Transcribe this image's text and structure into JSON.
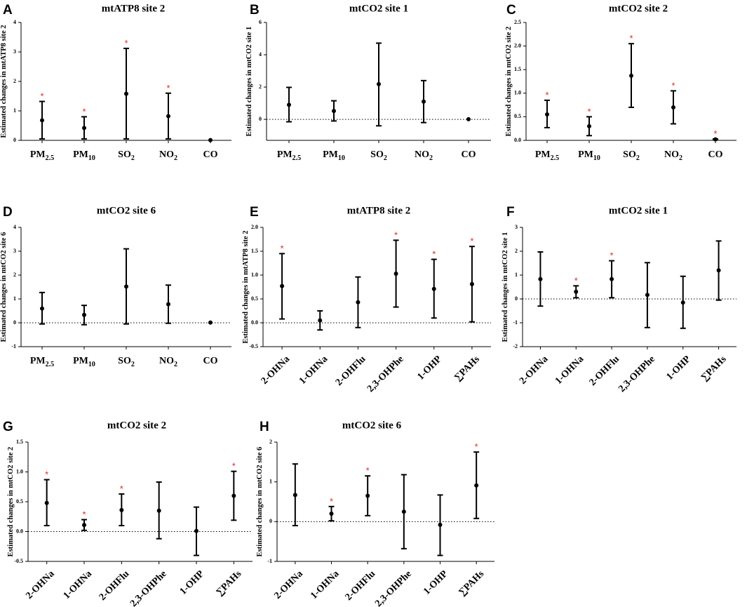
{
  "colors": {
    "marker": "#000000",
    "significance": "#e32b2b",
    "zero_line": "#000000"
  },
  "chart_data": [
    {
      "letter": "A",
      "type": "scatter",
      "title": "mtATP8 site 2",
      "ylabel": "Estimated changes in mtATP8 site 2",
      "xlabel": "",
      "ylim": [
        0,
        4
      ],
      "yticks": [
        "0",
        "1",
        "2",
        "3",
        "4"
      ],
      "categories": [
        {
          "label": "PM2.5",
          "base": "PM",
          "sub": "2.5",
          "value": 0.68,
          "lower": 0.05,
          "upper": 1.32,
          "sig": true
        },
        {
          "label": "PM10",
          "base": "PM",
          "sub": "10",
          "value": 0.42,
          "lower": 0.05,
          "upper": 0.8,
          "sig": true
        },
        {
          "label": "SO2",
          "base": "SO",
          "sub": "2",
          "value": 1.58,
          "lower": 0.05,
          "upper": 3.12,
          "sig": true
        },
        {
          "label": "NO2",
          "base": "NO",
          "sub": "2",
          "value": 0.82,
          "lower": 0.05,
          "upper": 1.6,
          "sig": true
        },
        {
          "label": "CO",
          "base": "CO",
          "sub": "",
          "value": 0.01,
          "lower": 0.01,
          "upper": 0.01,
          "sig": false
        }
      ]
    },
    {
      "letter": "B",
      "type": "scatter",
      "title": "mtCO2 site 1",
      "ylabel": "Estimated changes in mtCO2 site 1",
      "xlabel": "",
      "ylim": [
        -1.3,
        6
      ],
      "yticks": [
        "0",
        "2",
        "4",
        "6"
      ],
      "categories": [
        {
          "label": "PM2.5",
          "base": "PM",
          "sub": "2.5",
          "value": 0.9,
          "lower": -0.15,
          "upper": 1.98,
          "sig": false
        },
        {
          "label": "PM10",
          "base": "PM",
          "sub": "10",
          "value": 0.52,
          "lower": -0.1,
          "upper": 1.15,
          "sig": false
        },
        {
          "label": "SO2",
          "base": "SO",
          "sub": "2",
          "value": 2.18,
          "lower": -0.4,
          "upper": 4.72,
          "sig": false
        },
        {
          "label": "NO2",
          "base": "NO",
          "sub": "2",
          "value": 1.1,
          "lower": -0.2,
          "upper": 2.4,
          "sig": false
        },
        {
          "label": "CO",
          "base": "CO",
          "sub": "",
          "value": 0.01,
          "lower": 0.01,
          "upper": 0.01,
          "sig": false
        }
      ]
    },
    {
      "letter": "C",
      "type": "scatter",
      "title": "mtCO2 site 2",
      "ylabel": "Estimated changes in mtCO2 site 2",
      "xlabel": "",
      "ylim": [
        0,
        2.5
      ],
      "yticks": [
        "0.0",
        "0.5",
        "1.0",
        "1.5",
        "2.0",
        "2.5"
      ],
      "categories": [
        {
          "label": "PM2.5",
          "base": "PM",
          "sub": "2.5",
          "value": 0.55,
          "lower": 0.27,
          "upper": 0.85,
          "sig": true
        },
        {
          "label": "PM10",
          "base": "PM",
          "sub": "10",
          "value": 0.3,
          "lower": 0.1,
          "upper": 0.5,
          "sig": true
        },
        {
          "label": "SO2",
          "base": "SO",
          "sub": "2",
          "value": 1.37,
          "lower": 0.7,
          "upper": 2.05,
          "sig": true
        },
        {
          "label": "NO2",
          "base": "NO",
          "sub": "2",
          "value": 0.7,
          "lower": 0.35,
          "upper": 1.05,
          "sig": true
        },
        {
          "label": "CO",
          "base": "CO",
          "sub": "",
          "value": 0.02,
          "lower": 0.01,
          "upper": 0.03,
          "sig": true
        }
      ]
    },
    {
      "letter": "D",
      "type": "scatter",
      "title": "mtCO2 site 6",
      "ylabel": "Estimated changes in mtCO2 site 6",
      "xlabel": "",
      "ylim": [
        -1,
        4
      ],
      "yticks": [
        "-1",
        "0",
        "1",
        "2",
        "3",
        "4"
      ],
      "categories": [
        {
          "label": "PM2.5",
          "base": "PM",
          "sub": "2.5",
          "value": 0.6,
          "lower": -0.05,
          "upper": 1.27,
          "sig": false
        },
        {
          "label": "PM10",
          "base": "PM",
          "sub": "10",
          "value": 0.33,
          "lower": -0.08,
          "upper": 0.73,
          "sig": false
        },
        {
          "label": "SO2",
          "base": "SO",
          "sub": "2",
          "value": 1.52,
          "lower": -0.05,
          "upper": 3.1,
          "sig": false
        },
        {
          "label": "NO2",
          "base": "NO",
          "sub": "2",
          "value": 0.78,
          "lower": -0.02,
          "upper": 1.58,
          "sig": false
        },
        {
          "label": "CO",
          "base": "CO",
          "sub": "",
          "value": 0.01,
          "lower": 0.01,
          "upper": 0.01,
          "sig": false
        }
      ]
    },
    {
      "letter": "E",
      "type": "scatter",
      "title": "mtATP8 site 2",
      "ylabel": "Estimated changes in mtATP8 site 2",
      "xlabel": "",
      "ylim": [
        -0.5,
        2.0
      ],
      "yticks": [
        "-0.5",
        "0.0",
        "0.5",
        "1.0",
        "1.5",
        "2.0"
      ],
      "categories": [
        {
          "label": "2-OHNa",
          "base": "2-OHNa",
          "sub": "",
          "value": 0.77,
          "lower": 0.08,
          "upper": 1.45,
          "sig": true
        },
        {
          "label": "1-OHNa",
          "base": "1-OHNa",
          "sub": "",
          "value": 0.05,
          "lower": -0.15,
          "upper": 0.25,
          "sig": false
        },
        {
          "label": "2-OHFlu",
          "base": "2-OHFlu",
          "sub": "",
          "value": 0.43,
          "lower": -0.1,
          "upper": 0.96,
          "sig": false
        },
        {
          "label": "2,3-OHPhe",
          "base": "2,3-OHPhe",
          "sub": "",
          "value": 1.03,
          "lower": 0.33,
          "upper": 1.73,
          "sig": true
        },
        {
          "label": "1-OHP",
          "base": "1-OHP",
          "sub": "",
          "value": 0.71,
          "lower": 0.1,
          "upper": 1.33,
          "sig": true
        },
        {
          "label": "∑PAHs",
          "base": "∑PAHs",
          "sub": "",
          "value": 0.81,
          "lower": 0.02,
          "upper": 1.6,
          "sig": true
        }
      ]
    },
    {
      "letter": "F",
      "type": "scatter",
      "title": "mtCO2 site 1",
      "ylabel": "Estimated changes in mtCO2 site 1",
      "xlabel": "",
      "ylim": [
        -2,
        3
      ],
      "yticks": [
        "-2",
        "-1",
        "0",
        "1",
        "2",
        "3"
      ],
      "categories": [
        {
          "label": "2-OHNa",
          "base": "2-OHNa",
          "sub": "",
          "value": 0.83,
          "lower": -0.3,
          "upper": 1.97,
          "sig": false
        },
        {
          "label": "1-OHNa",
          "base": "1-OHNa",
          "sub": "",
          "value": 0.3,
          "lower": 0.05,
          "upper": 0.55,
          "sig": true
        },
        {
          "label": "2-OHFlu",
          "base": "2-OHFlu",
          "sub": "",
          "value": 0.83,
          "lower": 0.05,
          "upper": 1.6,
          "sig": true
        },
        {
          "label": "2,3-OHPhe",
          "base": "2,3-OHPhe",
          "sub": "",
          "value": 0.17,
          "lower": -1.2,
          "upper": 1.52,
          "sig": false
        },
        {
          "label": "1-OHP",
          "base": "1-OHP",
          "sub": "",
          "value": -0.15,
          "lower": -1.23,
          "upper": 0.95,
          "sig": false
        },
        {
          "label": "∑PAHs",
          "base": "∑PAHs",
          "sub": "",
          "value": 1.2,
          "lower": -0.05,
          "upper": 2.43,
          "sig": false
        }
      ]
    },
    {
      "letter": "G",
      "type": "scatter",
      "title": "mtCO2 site 2",
      "ylabel": "Estimated changes in mtCO2 site 2",
      "xlabel": "",
      "ylim": [
        -0.5,
        1.5
      ],
      "yticks": [
        "-0.5",
        "0.0",
        "0.5",
        "1.0",
        "1.5"
      ],
      "categories": [
        {
          "label": "2-OHNa",
          "base": "2-OHNa",
          "sub": "",
          "value": 0.48,
          "lower": 0.1,
          "upper": 0.87,
          "sig": true
        },
        {
          "label": "1-OHNa",
          "base": "1-OHNa",
          "sub": "",
          "value": 0.11,
          "lower": 0.02,
          "upper": 0.2,
          "sig": true
        },
        {
          "label": "2-OHFlu",
          "base": "2-OHFlu",
          "sub": "",
          "value": 0.36,
          "lower": 0.1,
          "upper": 0.63,
          "sig": true
        },
        {
          "label": "2,3-OHPhe",
          "base": "2,3-OHPhe",
          "sub": "",
          "value": 0.35,
          "lower": -0.12,
          "upper": 0.83,
          "sig": false
        },
        {
          "label": "1-OHP",
          "base": "1-OHP",
          "sub": "",
          "value": 0.01,
          "lower": -0.4,
          "upper": 0.41,
          "sig": false
        },
        {
          "label": "∑PAHs",
          "base": "∑PAHs",
          "sub": "",
          "value": 0.6,
          "lower": 0.19,
          "upper": 1.01,
          "sig": true
        }
      ]
    },
    {
      "letter": "H",
      "type": "scatter",
      "title": "mtCO2 site 6",
      "ylabel": "Estimated changes in mtCO2 site 6",
      "xlabel": "",
      "ylim": [
        -1,
        2
      ],
      "yticks": [
        "-1",
        "0",
        "1",
        "2"
      ],
      "categories": [
        {
          "label": "2-OHNa",
          "base": "2-OHNa",
          "sub": "",
          "value": 0.67,
          "lower": -0.1,
          "upper": 1.45,
          "sig": false
        },
        {
          "label": "1-OHNa",
          "base": "1-OHNa",
          "sub": "",
          "value": 0.2,
          "lower": 0.02,
          "upper": 0.38,
          "sig": true
        },
        {
          "label": "2-OHFlu",
          "base": "2-OHFlu",
          "sub": "",
          "value": 0.65,
          "lower": 0.15,
          "upper": 1.15,
          "sig": true
        },
        {
          "label": "2,3-OHPhe",
          "base": "2,3-OHPhe",
          "sub": "",
          "value": 0.25,
          "lower": -0.68,
          "upper": 1.18,
          "sig": false
        },
        {
          "label": "1-OHP",
          "base": "1-OHP",
          "sub": "",
          "value": -0.08,
          "lower": -0.85,
          "upper": 0.67,
          "sig": false
        },
        {
          "label": "∑PAHs",
          "base": "∑PAHs",
          "sub": "",
          "value": 0.91,
          "lower": 0.08,
          "upper": 1.75,
          "sig": true
        }
      ]
    }
  ]
}
